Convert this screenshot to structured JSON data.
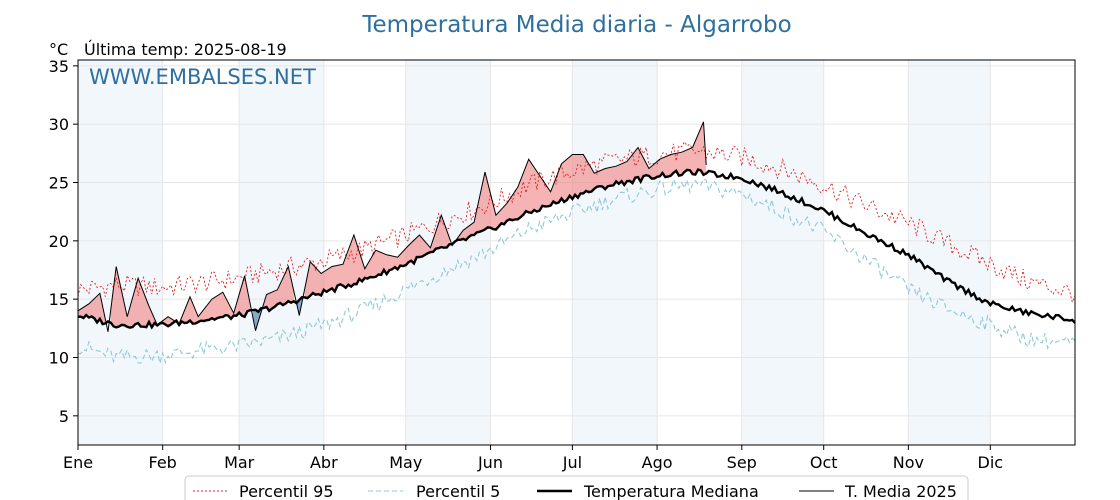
{
  "chart_data": {
    "type": "line",
    "title": "Temperatura Media diaria - Algarrobo",
    "unit": "°C",
    "subtitle": "Última temp: 2025-08-19",
    "watermark": "WWW.EMBALSES.NET",
    "ylim": [
      2.5,
      35.5
    ],
    "y_ticks": [
      5,
      10,
      15,
      20,
      25,
      30,
      35
    ],
    "x_ticks": [
      "Ene",
      "Feb",
      "Mar",
      "Abr",
      "May",
      "Jun",
      "Jul",
      "Ago",
      "Sep",
      "Oct",
      "Nov",
      "Dic"
    ],
    "x_tick_days": [
      1,
      32,
      60,
      91,
      121,
      152,
      182,
      213,
      244,
      274,
      305,
      335
    ],
    "xlim_days": [
      1,
      366
    ],
    "grid": true,
    "shaded_months": [
      "Ene",
      "Mar",
      "May",
      "Jul",
      "Sep",
      "Nov"
    ],
    "legend_position": "bottom",
    "series": [
      {
        "name": "Percentil 95",
        "style": "dotted",
        "color": "#e02020",
        "day": [
          1,
          15,
          32,
          46,
          60,
          74,
          91,
          105,
          121,
          135,
          152,
          166,
          182,
          196,
          213,
          227,
          244,
          258,
          274,
          288,
          305,
          319,
          335,
          349,
          366
        ],
        "value": [
          15.8,
          16.2,
          16.0,
          16.4,
          16.8,
          17.5,
          18.3,
          19.2,
          20.5,
          21.8,
          23.2,
          24.8,
          26.0,
          26.8,
          27.4,
          27.7,
          27.2,
          26.2,
          24.8,
          23.2,
          21.5,
          19.8,
          18.0,
          16.5,
          15.5
        ]
      },
      {
        "name": "Percentil 5",
        "style": "dashed",
        "color": "#8ec8da",
        "day": [
          1,
          15,
          32,
          46,
          60,
          74,
          91,
          105,
          121,
          135,
          152,
          166,
          182,
          196,
          213,
          227,
          244,
          258,
          274,
          288,
          305,
          319,
          335,
          349,
          366
        ],
        "value": [
          11.0,
          10.0,
          10.2,
          10.6,
          11.0,
          11.6,
          12.8,
          14.0,
          15.8,
          17.4,
          19.2,
          21.0,
          22.4,
          23.5,
          24.4,
          24.8,
          24.0,
          22.6,
          20.8,
          18.6,
          15.8,
          14.2,
          12.8,
          11.6,
          11.2
        ]
      },
      {
        "name": "Temperatura Mediana",
        "style": "solid-thick",
        "color": "#000000",
        "day": [
          1,
          15,
          32,
          46,
          60,
          74,
          91,
          105,
          121,
          135,
          152,
          166,
          182,
          196,
          213,
          227,
          244,
          258,
          274,
          288,
          305,
          319,
          335,
          349,
          366
        ],
        "value": [
          13.6,
          12.8,
          12.8,
          13.2,
          13.6,
          14.4,
          15.6,
          16.6,
          18.0,
          19.4,
          21.0,
          22.4,
          23.8,
          24.8,
          25.6,
          25.9,
          25.4,
          24.2,
          22.6,
          20.8,
          18.8,
          16.6,
          14.6,
          13.8,
          13.2
        ]
      },
      {
        "name": "T. Media 2025",
        "style": "solid-thin",
        "color": "#000000",
        "day": [
          1,
          5,
          9,
          12,
          15,
          19,
          23,
          27,
          30,
          34,
          38,
          42,
          45,
          50,
          54,
          58,
          62,
          66,
          70,
          74,
          78,
          82,
          86,
          90,
          94,
          98,
          102,
          106,
          110,
          114,
          118,
          122,
          126,
          130,
          134,
          138,
          142,
          146,
          150,
          154,
          158,
          162,
          166,
          170,
          174,
          178,
          182,
          186,
          190,
          194,
          198,
          202,
          206,
          210,
          214,
          218,
          222,
          226,
          230,
          231
        ],
        "value": [
          14.0,
          14.6,
          15.5,
          12.2,
          17.8,
          13.5,
          16.8,
          14.4,
          12.8,
          13.5,
          12.9,
          15.2,
          13.5,
          15.0,
          15.6,
          13.8,
          17.0,
          12.3,
          15.4,
          15.8,
          17.8,
          13.6,
          18.2,
          17.2,
          17.8,
          18.0,
          20.5,
          17.6,
          19.2,
          18.8,
          18.6,
          19.6,
          20.5,
          19.4,
          22.2,
          19.6,
          20.9,
          21.6,
          25.9,
          22.2,
          23.2,
          24.6,
          27.0,
          25.6,
          24.2,
          26.6,
          27.4,
          27.4,
          25.8,
          26.2,
          26.4,
          26.8,
          28.0,
          26.2,
          27.0,
          27.4,
          27.6,
          28.0,
          30.2,
          26.5
        ]
      }
    ]
  }
}
